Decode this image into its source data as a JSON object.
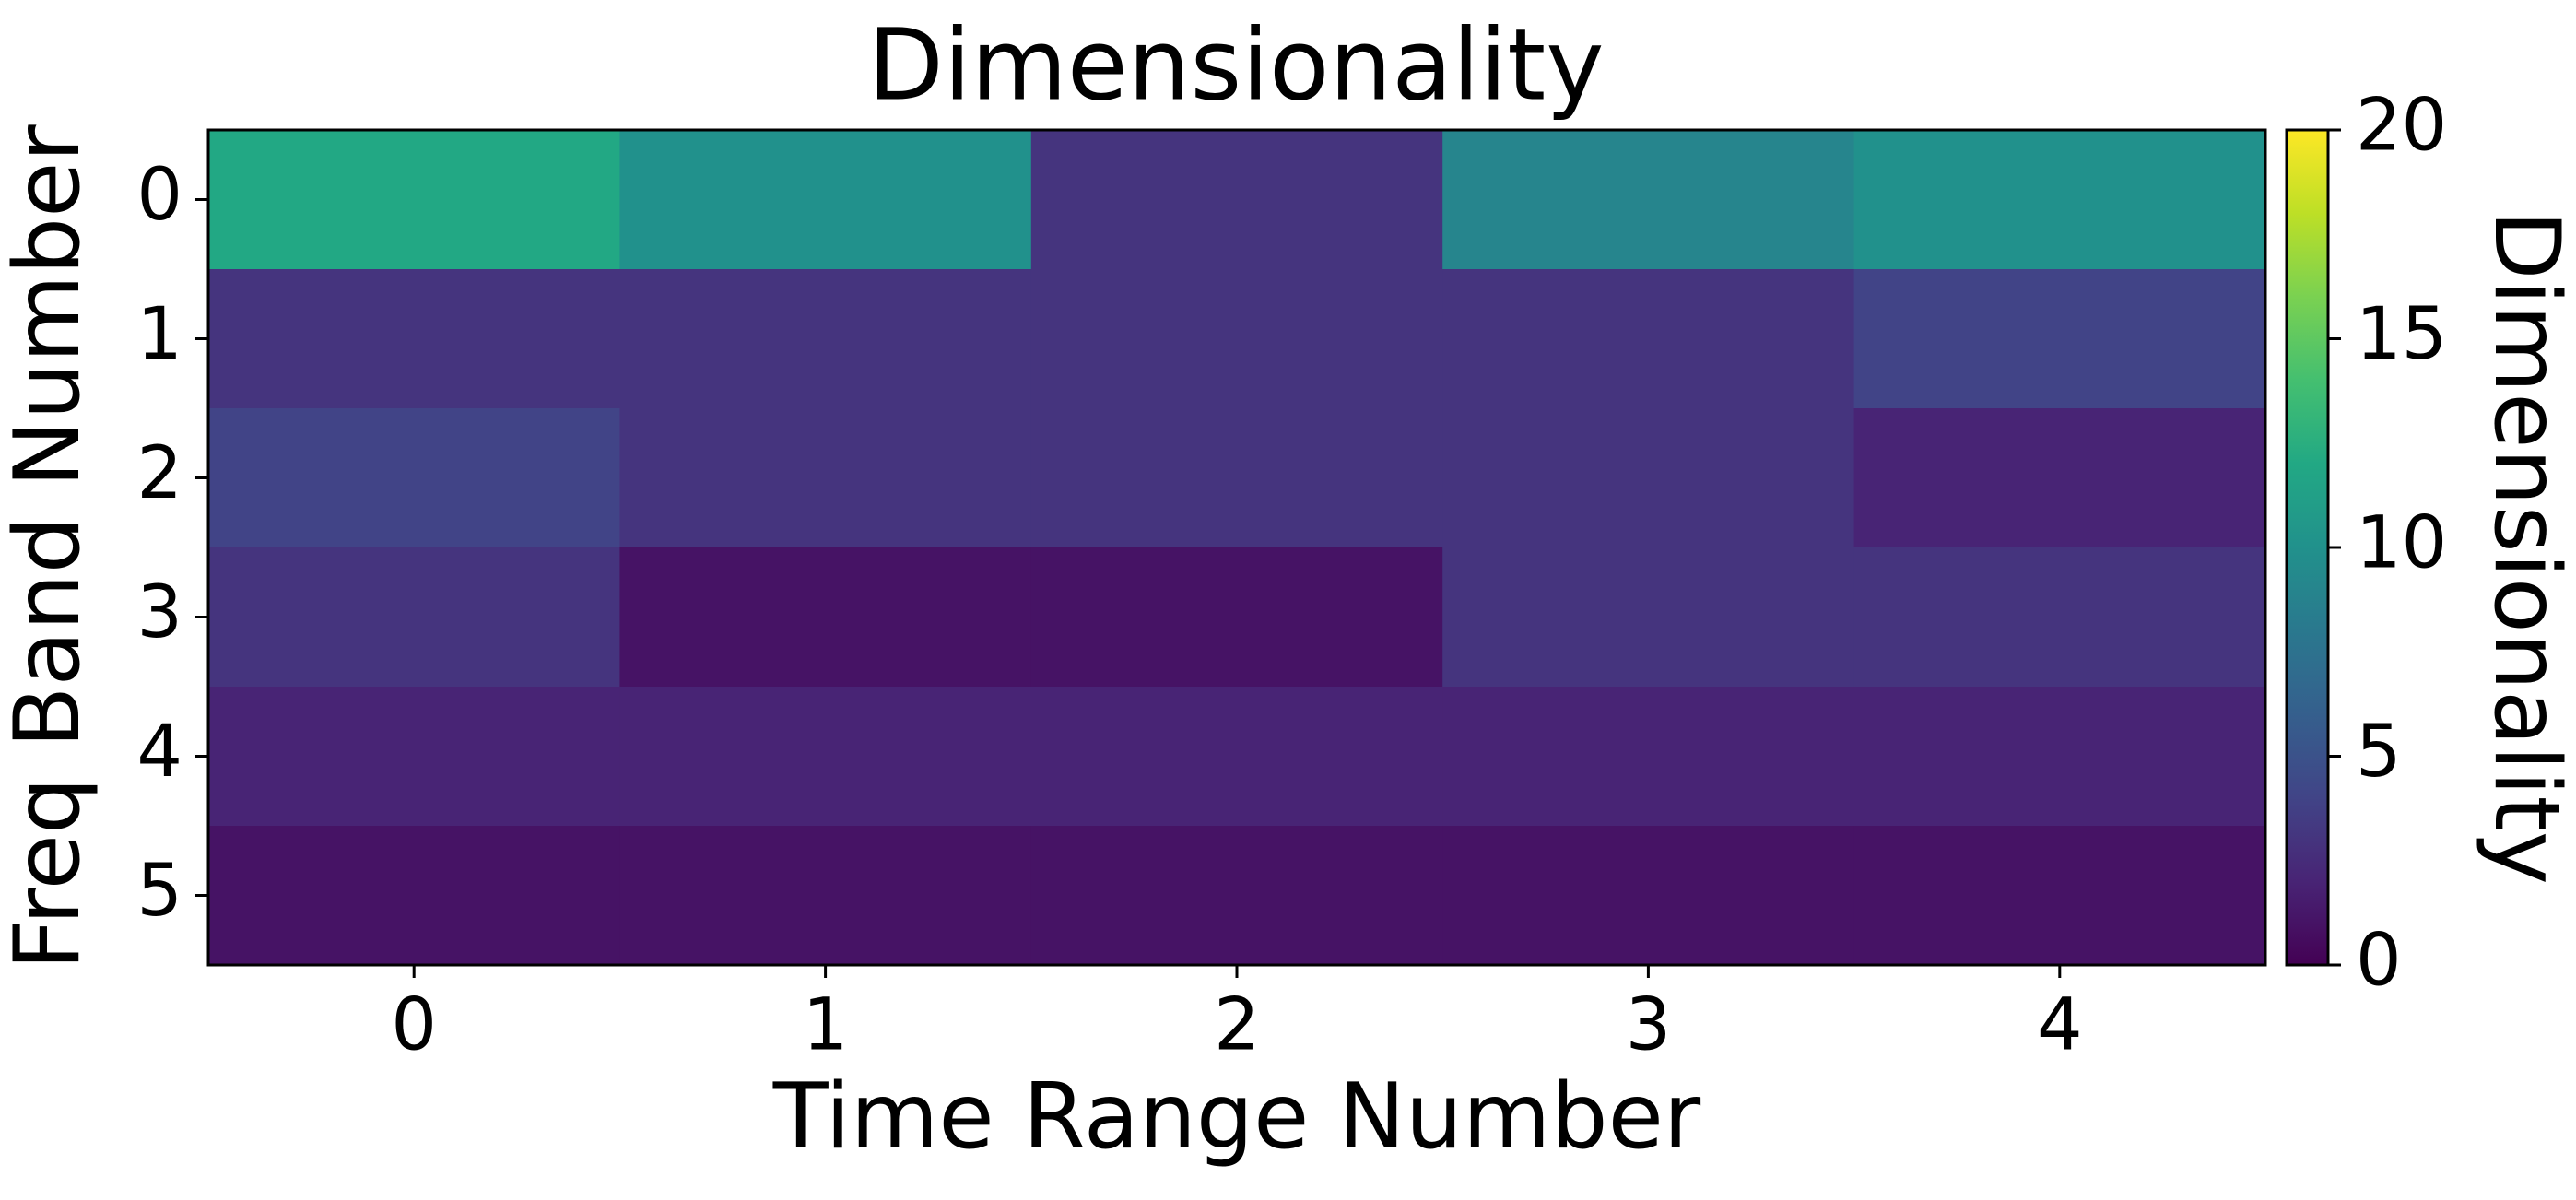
{
  "chart_data": {
    "type": "heatmap",
    "title": "Dimensionality",
    "xlabel": "Time Range Number",
    "ylabel": "Freq Band Number",
    "x_categories": [
      "0",
      "1",
      "2",
      "3",
      "4"
    ],
    "y_categories": [
      "0",
      "1",
      "2",
      "3",
      "4",
      "5"
    ],
    "values": [
      [
        12,
        10,
        3,
        9,
        10
      ],
      [
        3,
        3,
        3,
        3,
        4
      ],
      [
        4,
        3,
        3,
        3,
        2
      ],
      [
        3,
        1,
        1,
        3,
        3
      ],
      [
        2,
        2,
        2,
        2,
        2
      ],
      [
        1,
        1,
        1,
        1,
        1
      ]
    ],
    "colorscale": "viridis",
    "vmin": 0,
    "vmax": 20,
    "colorbar": {
      "label": "Dimensionality",
      "ticks": [
        0,
        5,
        10,
        15,
        20
      ],
      "tick_labels": [
        "0",
        "5",
        "10",
        "15",
        "20"
      ]
    },
    "grid": false
  }
}
